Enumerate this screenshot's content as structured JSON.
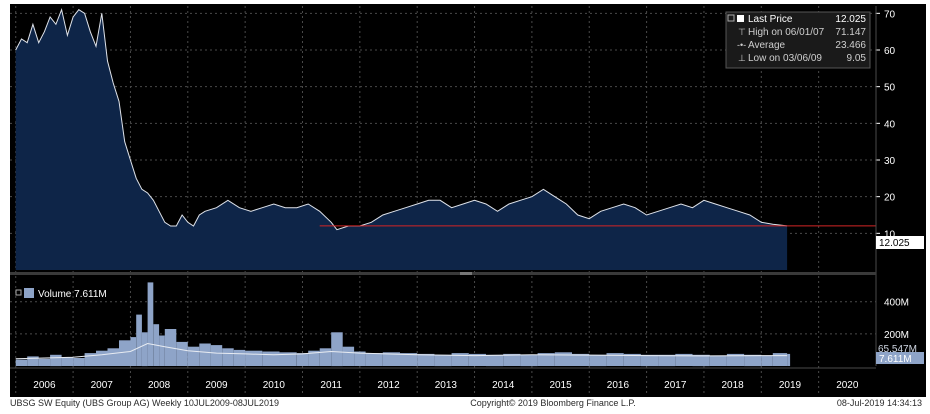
{
  "chart_data": {
    "type": "area",
    "price_panel": {
      "ylim": [
        0,
        72
      ],
      "yticks": [
        10,
        20,
        30,
        40,
        50,
        60,
        70
      ],
      "last_price_line": 12.025,
      "last_price_tag": "12.025",
      "series": [
        {
          "name": "Last Price",
          "x": [
            2006.0,
            2006.1,
            2006.2,
            2006.3,
            2006.4,
            2006.5,
            2006.6,
            2006.7,
            2006.8,
            2006.9,
            2007.0,
            2007.1,
            2007.2,
            2007.3,
            2007.4,
            2007.5,
            2007.6,
            2007.7,
            2007.8,
            2007.9,
            2008.0,
            2008.1,
            2008.2,
            2008.3,
            2008.4,
            2008.5,
            2008.6,
            2008.7,
            2008.8,
            2008.9,
            2009.0,
            2009.1,
            2009.2,
            2009.3,
            2009.5,
            2009.7,
            2009.9,
            2010.1,
            2010.3,
            2010.5,
            2010.7,
            2010.9,
            2011.1,
            2011.3,
            2011.5,
            2011.6,
            2011.8,
            2012.0,
            2012.2,
            2012.4,
            2012.6,
            2012.8,
            2013.0,
            2013.2,
            2013.4,
            2013.6,
            2013.8,
            2014.0,
            2014.2,
            2014.4,
            2014.6,
            2014.8,
            2015.0,
            2015.2,
            2015.4,
            2015.6,
            2015.8,
            2016.0,
            2016.2,
            2016.4,
            2016.6,
            2016.8,
            2017.0,
            2017.2,
            2017.4,
            2017.6,
            2017.8,
            2018.0,
            2018.2,
            2018.4,
            2018.6,
            2018.8,
            2019.0,
            2019.2,
            2019.45
          ],
          "y": [
            60,
            63,
            62,
            67,
            62,
            65,
            69,
            67,
            71,
            64,
            69,
            71,
            70,
            65,
            61,
            70,
            57,
            51,
            46,
            35,
            30,
            25,
            22,
            21,
            19,
            16,
            13,
            12,
            12,
            15,
            13,
            12,
            15,
            16,
            17,
            19,
            17,
            16,
            17,
            18,
            17,
            17,
            18,
            16,
            13,
            11,
            12,
            12,
            13,
            15,
            16,
            17,
            18,
            19,
            19,
            17,
            18,
            19,
            18,
            16,
            18,
            19,
            20,
            22,
            20,
            18,
            15,
            14,
            16,
            17,
            18,
            17,
            15,
            16,
            17,
            18,
            17,
            19,
            18,
            17,
            16,
            15,
            13,
            12.5,
            12.025
          ]
        }
      ],
      "legend": [
        {
          "label": "Last Price",
          "value": "12.025"
        },
        {
          "label": "High on 06/01/07",
          "value": "71.147"
        },
        {
          "label": "Average",
          "value": "23.466"
        },
        {
          "label": "Low on 03/06/09",
          "value": "9.05"
        }
      ]
    },
    "volume_panel": {
      "title": "Volume 7.611M",
      "ylim": [
        0,
        560
      ],
      "yticks": [
        {
          "v": 200,
          "label": "200M"
        },
        {
          "v": 400,
          "label": "400M"
        }
      ],
      "tags": [
        {
          "label": "65.547M"
        },
        {
          "label": "7.611M"
        }
      ],
      "volume_x": [
        2006.0,
        2006.2,
        2006.4,
        2006.6,
        2006.8,
        2007.0,
        2007.2,
        2007.4,
        2007.6,
        2007.8,
        2008.0,
        2008.1,
        2008.2,
        2008.3,
        2008.4,
        2008.5,
        2008.6,
        2008.8,
        2009.0,
        2009.2,
        2009.4,
        2009.6,
        2009.8,
        2010.0,
        2010.3,
        2010.6,
        2010.9,
        2011.1,
        2011.3,
        2011.5,
        2011.7,
        2011.9,
        2012.1,
        2012.4,
        2012.7,
        2013.0,
        2013.3,
        2013.6,
        2013.9,
        2014.2,
        2014.5,
        2014.8,
        2015.1,
        2015.4,
        2015.7,
        2016.0,
        2016.3,
        2016.6,
        2016.9,
        2017.2,
        2017.5,
        2017.8,
        2018.1,
        2018.4,
        2018.7,
        2019.0,
        2019.2,
        2019.45
      ],
      "volume": [
        40,
        60,
        45,
        70,
        55,
        50,
        80,
        95,
        110,
        160,
        180,
        320,
        210,
        520,
        260,
        190,
        230,
        150,
        120,
        140,
        130,
        110,
        100,
        95,
        90,
        85,
        80,
        95,
        110,
        210,
        120,
        90,
        80,
        85,
        80,
        75,
        70,
        80,
        75,
        70,
        75,
        70,
        80,
        85,
        75,
        70,
        80,
        75,
        70,
        70,
        75,
        70,
        65,
        75,
        70,
        65,
        80,
        75
      ],
      "avg_x": [
        2006.0,
        2006.5,
        2007.0,
        2007.5,
        2008.0,
        2008.3,
        2008.6,
        2009.0,
        2009.5,
        2010.0,
        2010.5,
        2011.0,
        2011.5,
        2012.0,
        2013.0,
        2014.0,
        2015.0,
        2016.0,
        2017.0,
        2018.0,
        2019.0,
        2019.45
      ],
      "avg": [
        45,
        50,
        55,
        70,
        90,
        140,
        120,
        95,
        80,
        75,
        70,
        75,
        90,
        80,
        70,
        65,
        70,
        68,
        65,
        63,
        65,
        65
      ]
    },
    "x_axis": {
      "xlim": [
        2005.9,
        2021.0
      ],
      "labels": [
        "2006",
        "2007",
        "2008",
        "2009",
        "2010",
        "2011",
        "2012",
        "2013",
        "2014",
        "2015",
        "2016",
        "2017",
        "2018",
        "2019",
        "2020"
      ]
    },
    "footer": {
      "left": "UBSG SW Equity (UBS Group AG)  Weekly 10JUL2009-08JUL2019",
      "center": "Copyright© 2019 Bloomberg Finance L.P.",
      "right": "08-Jul-2019 14:34:13"
    },
    "colors": {
      "background": "#000000",
      "area_fill": "#0e2548",
      "price_line": "#dfe3ea",
      "last_price_line": "#d42525",
      "volume_fill": "#8ea4c8",
      "volume_avg_line": "#e8ecf2",
      "grid": "#4a4a4a",
      "axis_text": "#ffffff",
      "footer_text": "#2a2a2a"
    }
  }
}
